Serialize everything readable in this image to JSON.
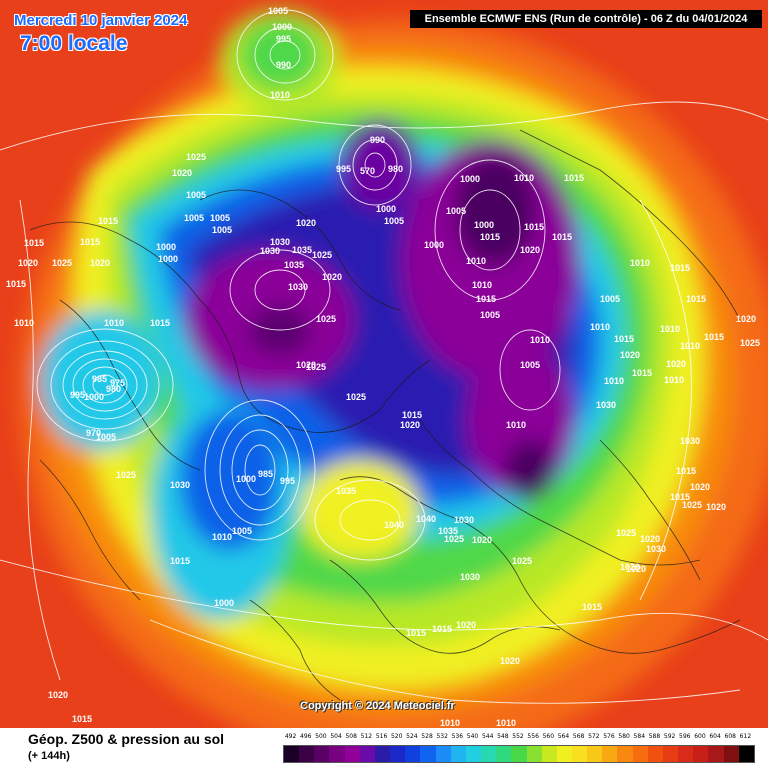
{
  "header": {
    "date": "Mercredi 10 janvier 2024",
    "time": "7:00 locale",
    "run_info": "Ensemble ECMWF ENS  (Run de contrôle)  -  06 Z du 04/01/2024"
  },
  "footer": {
    "parameter_title": "Géop. Z500 & pression au sol",
    "lead_time": "(+ 144h)",
    "copyright": "Copyright © 2024 Meteociel.fr"
  },
  "legend": {
    "values": [
      "492",
      "496",
      "500",
      "504",
      "508",
      "512",
      "516",
      "520",
      "524",
      "528",
      "532",
      "536",
      "540",
      "544",
      "548",
      "552",
      "556",
      "560",
      "564",
      "568",
      "572",
      "576",
      "580",
      "584",
      "588",
      "592",
      "596",
      "600",
      "604",
      "608",
      "612"
    ],
    "colors": [
      "#1a0026",
      "#3c0046",
      "#5a0064",
      "#7a0082",
      "#92009a",
      "#6a0aa8",
      "#2c1aa8",
      "#1c28c8",
      "#1040e0",
      "#1064f0",
      "#1c8cf8",
      "#20b4f0",
      "#20d0e0",
      "#28d8b0",
      "#30d880",
      "#48d848",
      "#88e030",
      "#c8e820",
      "#f0f020",
      "#f8e020",
      "#f8c818",
      "#f8a810",
      "#f88810",
      "#f86c10",
      "#f05010",
      "#e83c14",
      "#d82c18",
      "#c82018",
      "#a81818",
      "#801010",
      "#000000"
    ]
  },
  "map": {
    "pressure_labels": [
      {
        "text": "1005"
      },
      {
        "text": "1000"
      },
      {
        "text": "995"
      },
      {
        "text": "990"
      },
      {
        "text": "1010"
      },
      {
        "text": "1025"
      },
      {
        "text": "1020"
      },
      {
        "text": "1015"
      },
      {
        "text": "1015"
      },
      {
        "text": "1015"
      },
      {
        "text": "1020"
      },
      {
        "text": "1005"
      },
      {
        "text": "1005"
      },
      {
        "text": "1005"
      },
      {
        "text": "1000"
      },
      {
        "text": "1005"
      },
      {
        "text": "1000"
      },
      {
        "text": "1020"
      },
      {
        "text": "1030"
      },
      {
        "text": "1035"
      },
      {
        "text": "1030"
      },
      {
        "text": "1025"
      },
      {
        "text": "1035"
      },
      {
        "text": "1030"
      },
      {
        "text": "1025"
      },
      {
        "text": "990"
      },
      {
        "text": "995"
      },
      {
        "text": "570"
      },
      {
        "text": "980"
      },
      {
        "text": "1000"
      },
      {
        "text": "1005"
      },
      {
        "text": "1000"
      },
      {
        "text": "1005"
      },
      {
        "text": "1000"
      },
      {
        "text": "1000"
      },
      {
        "text": "1010"
      },
      {
        "text": "1015"
      },
      {
        "text": "1015"
      },
      {
        "text": "1010"
      },
      {
        "text": "1015"
      },
      {
        "text": "1020"
      },
      {
        "text": "1015"
      },
      {
        "text": "1010"
      },
      {
        "text": "1005"
      },
      {
        "text": "1010"
      },
      {
        "text": "1005"
      },
      {
        "text": "1010"
      },
      {
        "text": "1025"
      },
      {
        "text": "1020"
      },
      {
        "text": "1015"
      },
      {
        "text": "1010"
      },
      {
        "text": "1005"
      },
      {
        "text": "1010"
      },
      {
        "text": "1015"
      },
      {
        "text": "1020"
      },
      {
        "text": "1015"
      },
      {
        "text": "1020"
      },
      {
        "text": "1025"
      },
      {
        "text": "1035"
      },
      {
        "text": "1040"
      },
      {
        "text": "1040"
      },
      {
        "text": "1035"
      },
      {
        "text": "1030"
      },
      {
        "text": "1025"
      },
      {
        "text": "1020"
      },
      {
        "text": "1030"
      },
      {
        "text": "1020"
      },
      {
        "text": "1025"
      },
      {
        "text": "1015"
      },
      {
        "text": "1015"
      },
      {
        "text": "1020"
      },
      {
        "text": "1015"
      },
      {
        "text": "1020"
      },
      {
        "text": "1010"
      },
      {
        "text": "1000"
      },
      {
        "text": "985"
      },
      {
        "text": "995"
      },
      {
        "text": "1005"
      },
      {
        "text": "1010"
      },
      {
        "text": "1015"
      },
      {
        "text": "1000"
      },
      {
        "text": "1030"
      },
      {
        "text": "1025"
      },
      {
        "text": "1005"
      },
      {
        "text": "1000"
      },
      {
        "text": "995"
      },
      {
        "text": "985"
      },
      {
        "text": "980"
      },
      {
        "text": "975"
      },
      {
        "text": "970"
      },
      {
        "text": "1015"
      },
      {
        "text": "1010"
      },
      {
        "text": "1010"
      },
      {
        "text": "1015"
      },
      {
        "text": "1020"
      },
      {
        "text": "1025"
      },
      {
        "text": "1030"
      },
      {
        "text": "1015"
      },
      {
        "text": "1015"
      },
      {
        "text": "1010"
      },
      {
        "text": "1010"
      },
      {
        "text": "1020"
      },
      {
        "text": "1010"
      },
      {
        "text": "1015"
      },
      {
        "text": "1020"
      },
      {
        "text": "1025"
      },
      {
        "text": "1030"
      },
      {
        "text": "1015"
      },
      {
        "text": "1020"
      },
      {
        "text": "1020"
      },
      {
        "text": "1025"
      },
      {
        "text": "1015"
      },
      {
        "text": "1020"
      },
      {
        "text": "1025"
      },
      {
        "text": "1030"
      },
      {
        "text": "1020"
      },
      {
        "text": "1015"
      },
      {
        "text": "1010"
      },
      {
        "text": "1010"
      },
      {
        "text": "1020"
      },
      {
        "text": "1020"
      },
      {
        "text": "1015"
      },
      {
        "text": "1015"
      },
      {
        "text": "1015"
      },
      {
        "text": "1010"
      }
    ]
  }
}
